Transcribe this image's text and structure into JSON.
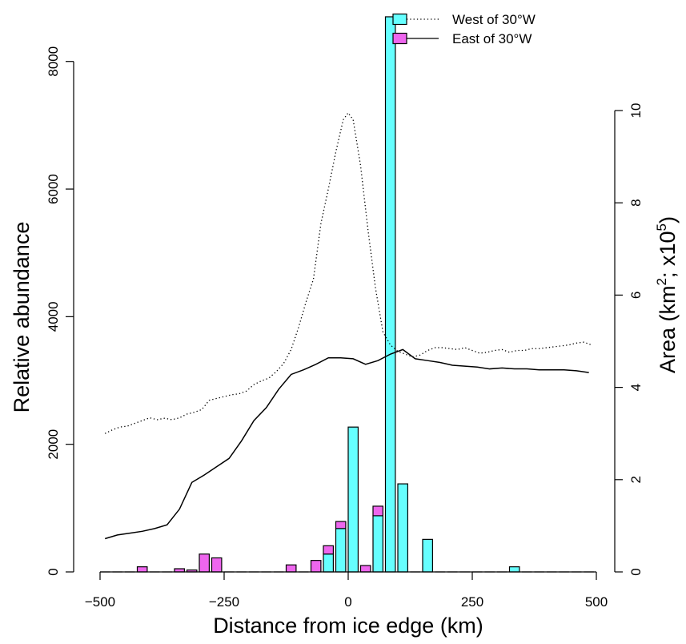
{
  "chart_data": {
    "type": "bar+line",
    "xlabel": "Distance from ice edge (km)",
    "ylabel": "Relative abundance",
    "y2label": "Area (km",
    "y2label_sup1": "2",
    "y2label_mid": "; x10",
    "y2label_sup2": "5",
    "y2label_end": ")",
    "xlim": [
      -500,
      500
    ],
    "ylim": [
      0,
      8800
    ],
    "y2lim": [
      0,
      10
    ],
    "xticks": [
      -500,
      -250,
      0,
      250,
      500
    ],
    "xtick_labels": [
      "−500",
      "−250",
      "0",
      "250",
      "500"
    ],
    "yticks": [
      0,
      2000,
      4000,
      6000,
      8000
    ],
    "ytick_labels": [
      "0",
      "2000",
      "4000",
      "6000",
      "8000"
    ],
    "y2ticks": [
      0,
      2,
      4,
      6,
      8,
      10
    ],
    "y2tick_labels": [
      "0",
      "2",
      "4",
      "6",
      "8",
      "10"
    ],
    "bar_width": 20,
    "bar_x": [
      -490,
      -465,
      -440,
      -415,
      -390,
      -365,
      -340,
      -315,
      -290,
      -265,
      -240,
      -215,
      -190,
      -165,
      -140,
      -115,
      -90,
      -65,
      -40,
      -15,
      10,
      35,
      60,
      85,
      110,
      135,
      160,
      185,
      210,
      235,
      260,
      285,
      310,
      335,
      360,
      385,
      410,
      435,
      460,
      485
    ],
    "bar_series": [
      {
        "name": "West of 30°W",
        "color": "#66ffff",
        "values": [
          0,
          0,
          0,
          0,
          0,
          0,
          0,
          0,
          0,
          0,
          0,
          0,
          0,
          0,
          0,
          0,
          0,
          0,
          280,
          680,
          2270,
          0,
          880,
          8700,
          1380,
          0,
          510,
          0,
          0,
          0,
          0,
          0,
          0,
          80,
          0,
          0,
          0,
          0,
          0,
          0
        ]
      },
      {
        "name": "East of 30°W",
        "color": "#ee66ee",
        "values": [
          0,
          0,
          0,
          80,
          0,
          0,
          50,
          30,
          280,
          220,
          0,
          0,
          0,
          0,
          0,
          110,
          0,
          180,
          130,
          110,
          0,
          100,
          150,
          0,
          0,
          0,
          0,
          0,
          0,
          0,
          0,
          0,
          0,
          0,
          0,
          0,
          0,
          0,
          0,
          0
        ]
      }
    ],
    "line_series": [
      {
        "name": "West of 30°W",
        "style": "dotted",
        "x": [
          -490,
          -475,
          -460,
          -445,
          -430,
          -415,
          -400,
          -385,
          -370,
          -355,
          -340,
          -325,
          -310,
          -295,
          -280,
          -265,
          -250,
          -235,
          -220,
          -205,
          -190,
          -175,
          -160,
          -145,
          -130,
          -115,
          -100,
          -85,
          -70,
          -55,
          -40,
          -25,
          -10,
          0,
          10,
          25,
          40,
          55,
          70,
          85,
          100,
          115,
          130,
          145,
          160,
          175,
          190,
          205,
          220,
          235,
          250,
          265,
          280,
          295,
          310,
          325,
          340,
          355,
          370,
          385,
          400,
          415,
          430,
          445,
          460,
          475,
          490
        ],
        "y": [
          3.0,
          3.08,
          3.14,
          3.16,
          3.22,
          3.28,
          3.34,
          3.3,
          3.33,
          3.3,
          3.34,
          3.42,
          3.46,
          3.52,
          3.72,
          3.76,
          3.8,
          3.84,
          3.86,
          3.92,
          4.06,
          4.14,
          4.2,
          4.34,
          4.52,
          4.82,
          5.3,
          5.85,
          6.35,
          7.55,
          8.3,
          9.1,
          9.8,
          9.95,
          9.8,
          8.8,
          7.4,
          6.15,
          5.2,
          4.92,
          4.78,
          4.72,
          4.66,
          4.7,
          4.8,
          4.86,
          4.86,
          4.84,
          4.82,
          4.86,
          4.8,
          4.74,
          4.76,
          4.8,
          4.82,
          4.76,
          4.8,
          4.8,
          4.84,
          4.84,
          4.86,
          4.88,
          4.9,
          4.92,
          4.96,
          4.98,
          4.92
        ]
      },
      {
        "name": "East of 30°W",
        "style": "solid",
        "x": [
          -490,
          -465,
          -440,
          -415,
          -390,
          -365,
          -340,
          -315,
          -290,
          -265,
          -240,
          -215,
          -190,
          -165,
          -140,
          -115,
          -90,
          -65,
          -40,
          -15,
          10,
          35,
          60,
          85,
          110,
          135,
          160,
          185,
          210,
          235,
          260,
          285,
          310,
          335,
          360,
          385,
          410,
          435,
          460,
          485
        ],
        "y": [
          0.72,
          0.8,
          0.84,
          0.88,
          0.94,
          1.02,
          1.36,
          1.94,
          2.1,
          2.28,
          2.46,
          2.84,
          3.28,
          3.56,
          3.96,
          4.28,
          4.38,
          4.5,
          4.64,
          4.64,
          4.62,
          4.5,
          4.58,
          4.72,
          4.82,
          4.62,
          4.58,
          4.54,
          4.48,
          4.46,
          4.44,
          4.4,
          4.42,
          4.4,
          4.4,
          4.38,
          4.38,
          4.38,
          4.36,
          4.32
        ]
      }
    ],
    "legend": {
      "placement": "top-center",
      "entries": [
        {
          "label": "West of 30°W",
          "fill": "#66ffff",
          "line": "dotted"
        },
        {
          "label": "East of 30°W",
          "fill": "#ee66ee",
          "line": "solid"
        }
      ]
    },
    "grid": false
  }
}
